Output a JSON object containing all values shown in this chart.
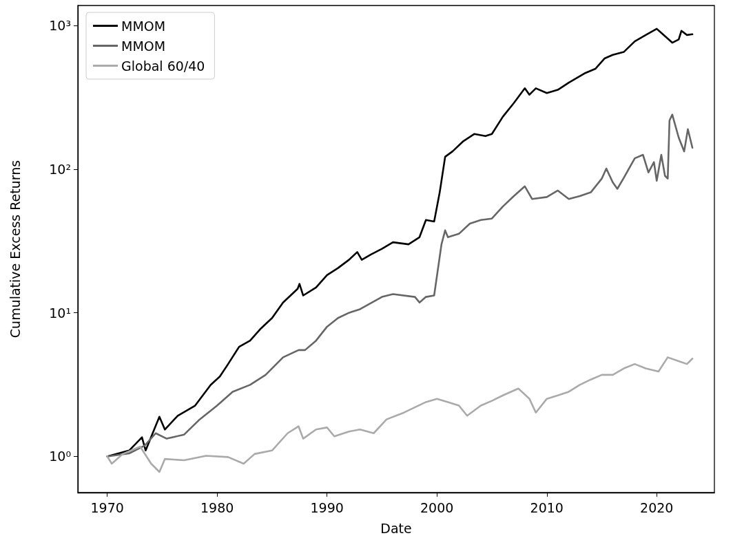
{
  "chart_data": {
    "type": "line",
    "xlabel": "Date",
    "ylabel": "Cumulative Excess Returns",
    "log": "y",
    "grid": false,
    "legend": "top left",
    "line_style": "solid",
    "marker": "none",
    "xlim": [
      "1967-05",
      "2025-04"
    ],
    "ylim": [
      0.56,
      1380
    ],
    "xticks": [
      {
        "value": "1970",
        "label": "1970"
      },
      {
        "value": "1980",
        "label": "1980"
      },
      {
        "value": "1990",
        "label": "1990"
      },
      {
        "value": "2000",
        "label": "2000"
      },
      {
        "value": "2010",
        "label": "2010"
      },
      {
        "value": "2020",
        "label": "2020"
      }
    ],
    "yticks": [
      {
        "value": 1,
        "label": "10⁰"
      },
      {
        "value": 10,
        "label": "10¹"
      },
      {
        "value": 100,
        "label": "10²"
      },
      {
        "value": 1000,
        "label": "10³"
      }
    ],
    "series": [
      {
        "name": "MMOM",
        "color": "#000000",
        "x": [
          "1970-01",
          "1972-01",
          "1973-03",
          "1973-07",
          "1974-10",
          "1975-04",
          "1976-06",
          "1978-01",
          "1979-06",
          "1980-04",
          "1981-01",
          "1982-01",
          "1983-01",
          "1984-01",
          "1985-01",
          "1986-01",
          "1987-05",
          "1987-07",
          "1987-11",
          "1989-01",
          "1990-01",
          "1991-01",
          "1992-01",
          "1992-10",
          "1993-03",
          "1994-01",
          "1995-01",
          "1996-01",
          "1997-06",
          "1998-06",
          "1999-01",
          "1999-10",
          "2000-04",
          "2000-10",
          "2001-06",
          "2002-06",
          "2003-06",
          "2004-06",
          "2005-01",
          "2006-01",
          "2007-01",
          "2008-01",
          "2008-06",
          "2009-01",
          "2010-01",
          "2011-01",
          "2012-01",
          "2013-06",
          "2014-06",
          "2015-04",
          "2016-01",
          "2017-01",
          "2018-01",
          "2019-01",
          "2020-01",
          "2020-06",
          "2021-06",
          "2022-01",
          "2022-04",
          "2022-10",
          "2023-04"
        ],
        "values": [
          1.0,
          1.1,
          1.36,
          1.1,
          1.89,
          1.54,
          1.92,
          2.26,
          3.15,
          3.6,
          4.4,
          5.8,
          6.4,
          7.8,
          9.2,
          11.8,
          14.7,
          15.9,
          13.2,
          15,
          18.3,
          20.5,
          23.4,
          26.5,
          23.4,
          25.5,
          27.9,
          31,
          30,
          33.6,
          44.3,
          43.2,
          68.6,
          122,
          133,
          157,
          176,
          170,
          176,
          232,
          289,
          366,
          330,
          366,
          339,
          357,
          401,
          464,
          500,
          590,
          625,
          655,
          777,
          860,
          950,
          890,
          760,
          800,
          920,
          860,
          870
        ]
      },
      {
        "name": "MMOM",
        "color": "#666666",
        "x": [
          "1970-01",
          "1972-01",
          "1973-06",
          "1974-06",
          "1975-06",
          "1977-01",
          "1978-06",
          "1980-01",
          "1981-06",
          "1983-01",
          "1984-06",
          "1986-01",
          "1987-06",
          "1988-01",
          "1989-01",
          "1990-01",
          "1991-01",
          "1992-01",
          "1993-01",
          "1995-01",
          "1996-01",
          "1998-01",
          "1998-06",
          "1999-01",
          "1999-10",
          "2000-06",
          "2000-10",
          "2001-01",
          "2002-01",
          "2003-01",
          "2004-01",
          "2005-01",
          "2006-01",
          "2007-01",
          "2008-01",
          "2008-09",
          "2010-01",
          "2011-01",
          "2012-01",
          "2013-01",
          "2014-01",
          "2015-01",
          "2015-06",
          "2016-01",
          "2016-06",
          "2017-01",
          "2018-01",
          "2018-10",
          "2019-04",
          "2019-10",
          "2020-01",
          "2020-06",
          "2020-10",
          "2021-01",
          "2021-03",
          "2021-06",
          "2022-01",
          "2022-07",
          "2022-11",
          "2023-04"
        ],
        "values": [
          1.0,
          1.05,
          1.19,
          1.45,
          1.33,
          1.42,
          1.81,
          2.26,
          2.82,
          3.15,
          3.7,
          4.9,
          5.5,
          5.5,
          6.4,
          8,
          9.2,
          10,
          10.6,
          12.9,
          13.5,
          12.9,
          11.8,
          12.9,
          13.2,
          30,
          37.5,
          33.6,
          35.5,
          41.8,
          44.3,
          45.3,
          55,
          65,
          76,
          62,
          64,
          71,
          62,
          65,
          69,
          86,
          101,
          81,
          73,
          87,
          119,
          126,
          95,
          112,
          83,
          126,
          90,
          86,
          218,
          240,
          166,
          133,
          190,
          141
        ]
      },
      {
        "name": "Global 60/40",
        "color": "#aaaaaa",
        "x": [
          "1970-01",
          "1970-06",
          "1971-06",
          "1973-01",
          "1974-01",
          "1974-10",
          "1975-04",
          "1977-01",
          "1979-01",
          "1981-01",
          "1982-06",
          "1983-06",
          "1985-01",
          "1986-06",
          "1987-06",
          "1987-11",
          "1989-01",
          "1990-01",
          "1990-09",
          "1992-01",
          "1993-01",
          "1994-04",
          "1995-06",
          "1997-01",
          "1999-01",
          "2000-01",
          "2001-01",
          "2002-01",
          "2002-10",
          "2004-01",
          "2005-01",
          "2006-01",
          "2007-06",
          "2008-06",
          "2009-01",
          "2010-01",
          "2011-01",
          "2012-01",
          "2013-01",
          "2014-01",
          "2015-01",
          "2016-01",
          "2017-01",
          "2018-01",
          "2019-01",
          "2020-03",
          "2021-01",
          "2022-01",
          "2022-10",
          "2023-04"
        ],
        "values": [
          1.0,
          0.89,
          1.04,
          1.17,
          0.89,
          0.78,
          0.96,
          0.94,
          1.01,
          0.99,
          0.89,
          1.04,
          1.1,
          1.45,
          1.62,
          1.33,
          1.54,
          1.59,
          1.38,
          1.49,
          1.54,
          1.45,
          1.81,
          2.02,
          2.39,
          2.52,
          2.39,
          2.26,
          1.92,
          2.26,
          2.44,
          2.66,
          2.97,
          2.52,
          2.02,
          2.52,
          2.66,
          2.82,
          3.15,
          3.43,
          3.7,
          3.7,
          4.1,
          4.4,
          4.1,
          3.9,
          4.9,
          4.6,
          4.4,
          4.8
        ]
      }
    ]
  }
}
